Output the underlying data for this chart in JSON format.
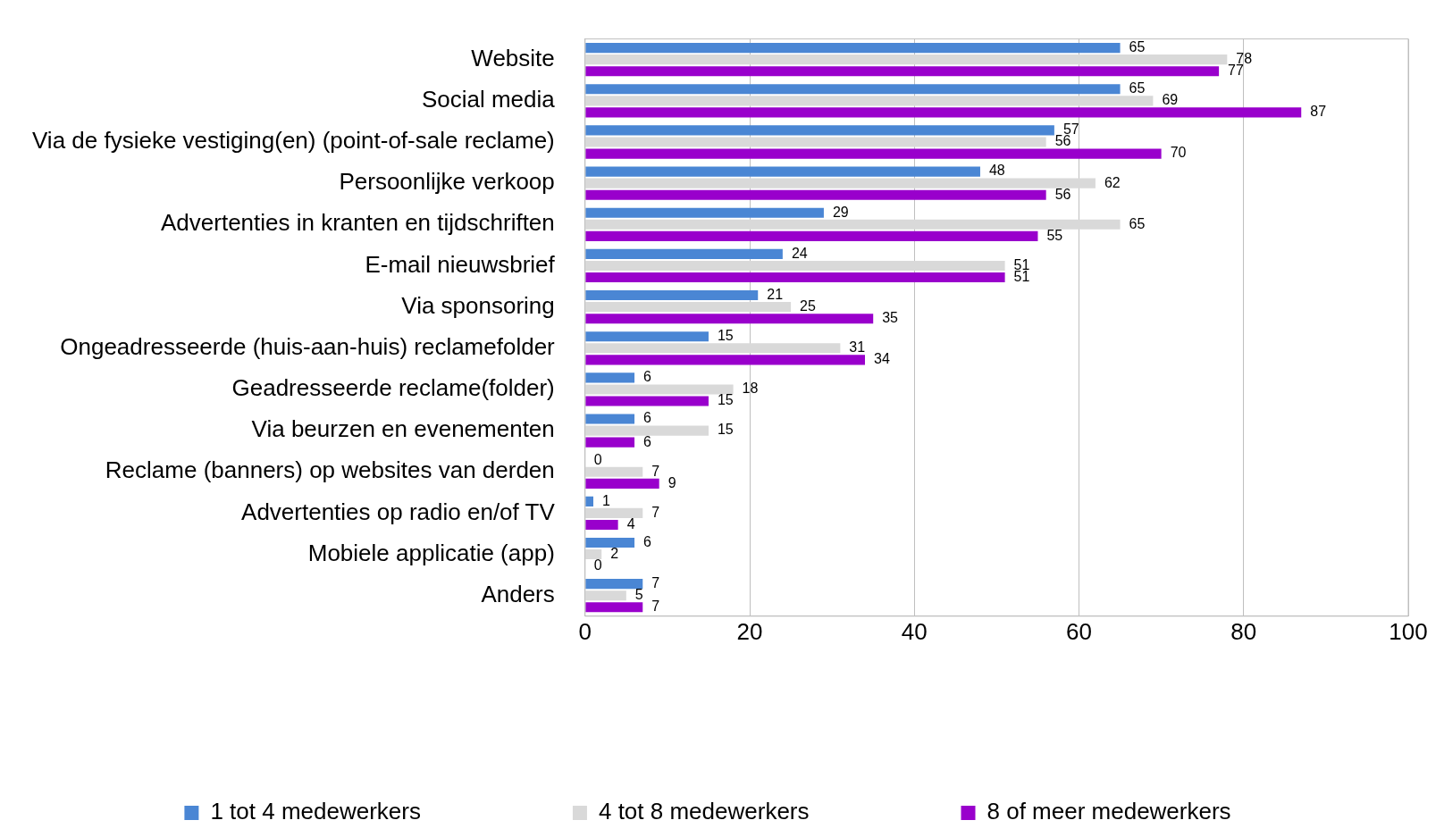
{
  "chart_data": {
    "type": "bar",
    "orientation": "horizontal",
    "categories": [
      "Website",
      "Social media",
      "Via de fysieke vestiging(en) (point-of-sale reclame)",
      "Persoonlijke verkoop",
      "Advertenties in kranten en tijdschriften",
      "E-mail nieuwsbrief",
      "Via sponsoring",
      "Ongeadresseerde (huis-aan-huis) reclamefolder",
      "Geadresseerde reclame(folder)",
      "Via beurzen en evenementen",
      "Reclame (banners) op websites van derden",
      "Advertenties op radio en/of TV",
      "Mobiele applicatie (app)",
      "Anders"
    ],
    "series": [
      {
        "name": "1 tot 4 medewerkers",
        "color": "#4a86d4",
        "values": [
          65,
          65,
          57,
          48,
          29,
          24,
          21,
          15,
          6,
          6,
          0,
          1,
          6,
          7
        ]
      },
      {
        "name": "4 tot 8 medewerkers",
        "color": "#d9d9d9",
        "values": [
          78,
          69,
          56,
          62,
          65,
          51,
          25,
          31,
          18,
          15,
          7,
          7,
          2,
          5
        ]
      },
      {
        "name": "8 of meer medewerkers",
        "color": "#9900cc",
        "values": [
          77,
          87,
          70,
          56,
          55,
          51,
          35,
          34,
          15,
          6,
          9,
          4,
          0,
          7
        ]
      }
    ],
    "xlim": [
      0,
      100
    ],
    "xticks": [
      0,
      20,
      40,
      60,
      80,
      100
    ],
    "grid": "x",
    "legend": "bottom",
    "data_labels": true
  }
}
